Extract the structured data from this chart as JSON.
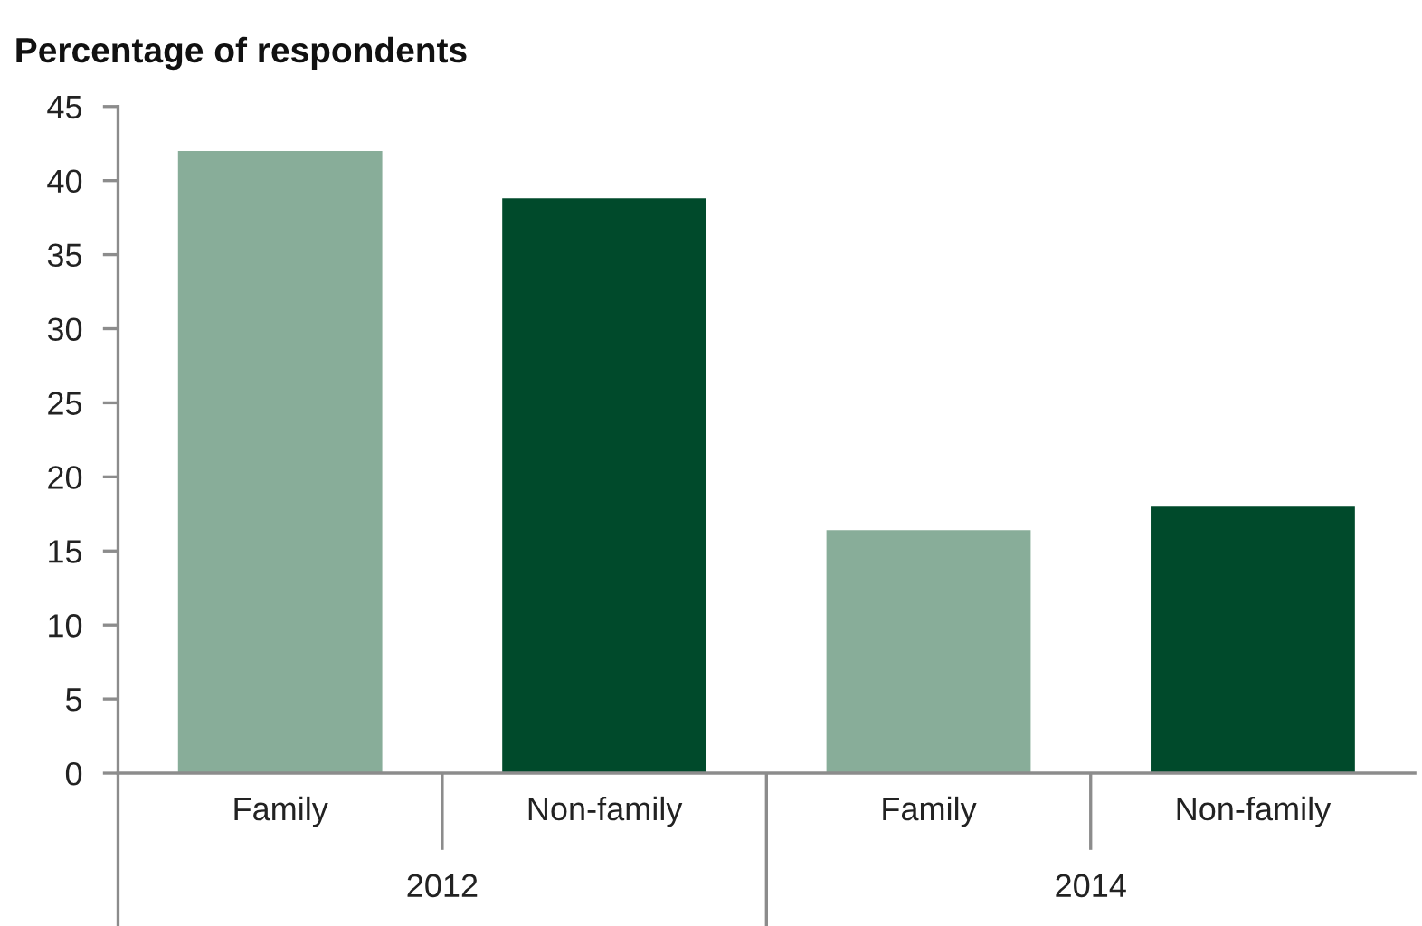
{
  "chart_data": {
    "type": "bar",
    "ylabel": "Percentage of respondents",
    "categories": [
      "2012",
      "2014"
    ],
    "series": [
      {
        "name": "Family",
        "color": "#88ad99",
        "values": [
          42,
          16.4
        ]
      },
      {
        "name": "Non-family",
        "color": "#004a2b",
        "values": [
          38.8,
          18
        ]
      }
    ],
    "ylim": [
      0,
      45
    ],
    "yticks": [
      0,
      5,
      10,
      15,
      20,
      25,
      30,
      35,
      40,
      45
    ]
  }
}
